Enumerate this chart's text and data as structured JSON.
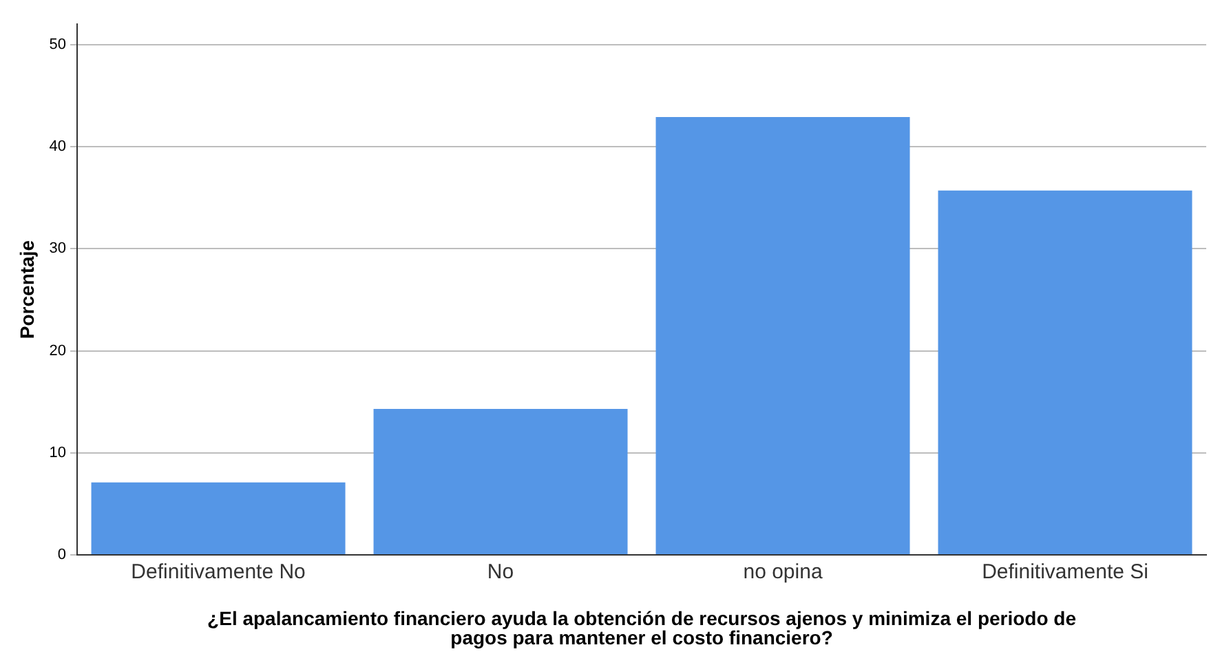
{
  "chart_data": {
    "type": "bar",
    "xlabel": "¿El apalancamiento financiero ayuda la obtención de recursos ajenos y minimiza el periodo de pagos para mantener el costo financiero?",
    "ylabel": "Porcentaje",
    "categories": [
      "Definitivamente No",
      "No",
      "no opina",
      "Definitivamente Si"
    ],
    "values": [
      7.1,
      14.3,
      42.9,
      35.7
    ],
    "color": "#5596e6",
    "ylim": [
      0,
      52
    ],
    "yticks": [
      0,
      10,
      20,
      30,
      40,
      50
    ],
    "grid": "y",
    "legend": false
  }
}
